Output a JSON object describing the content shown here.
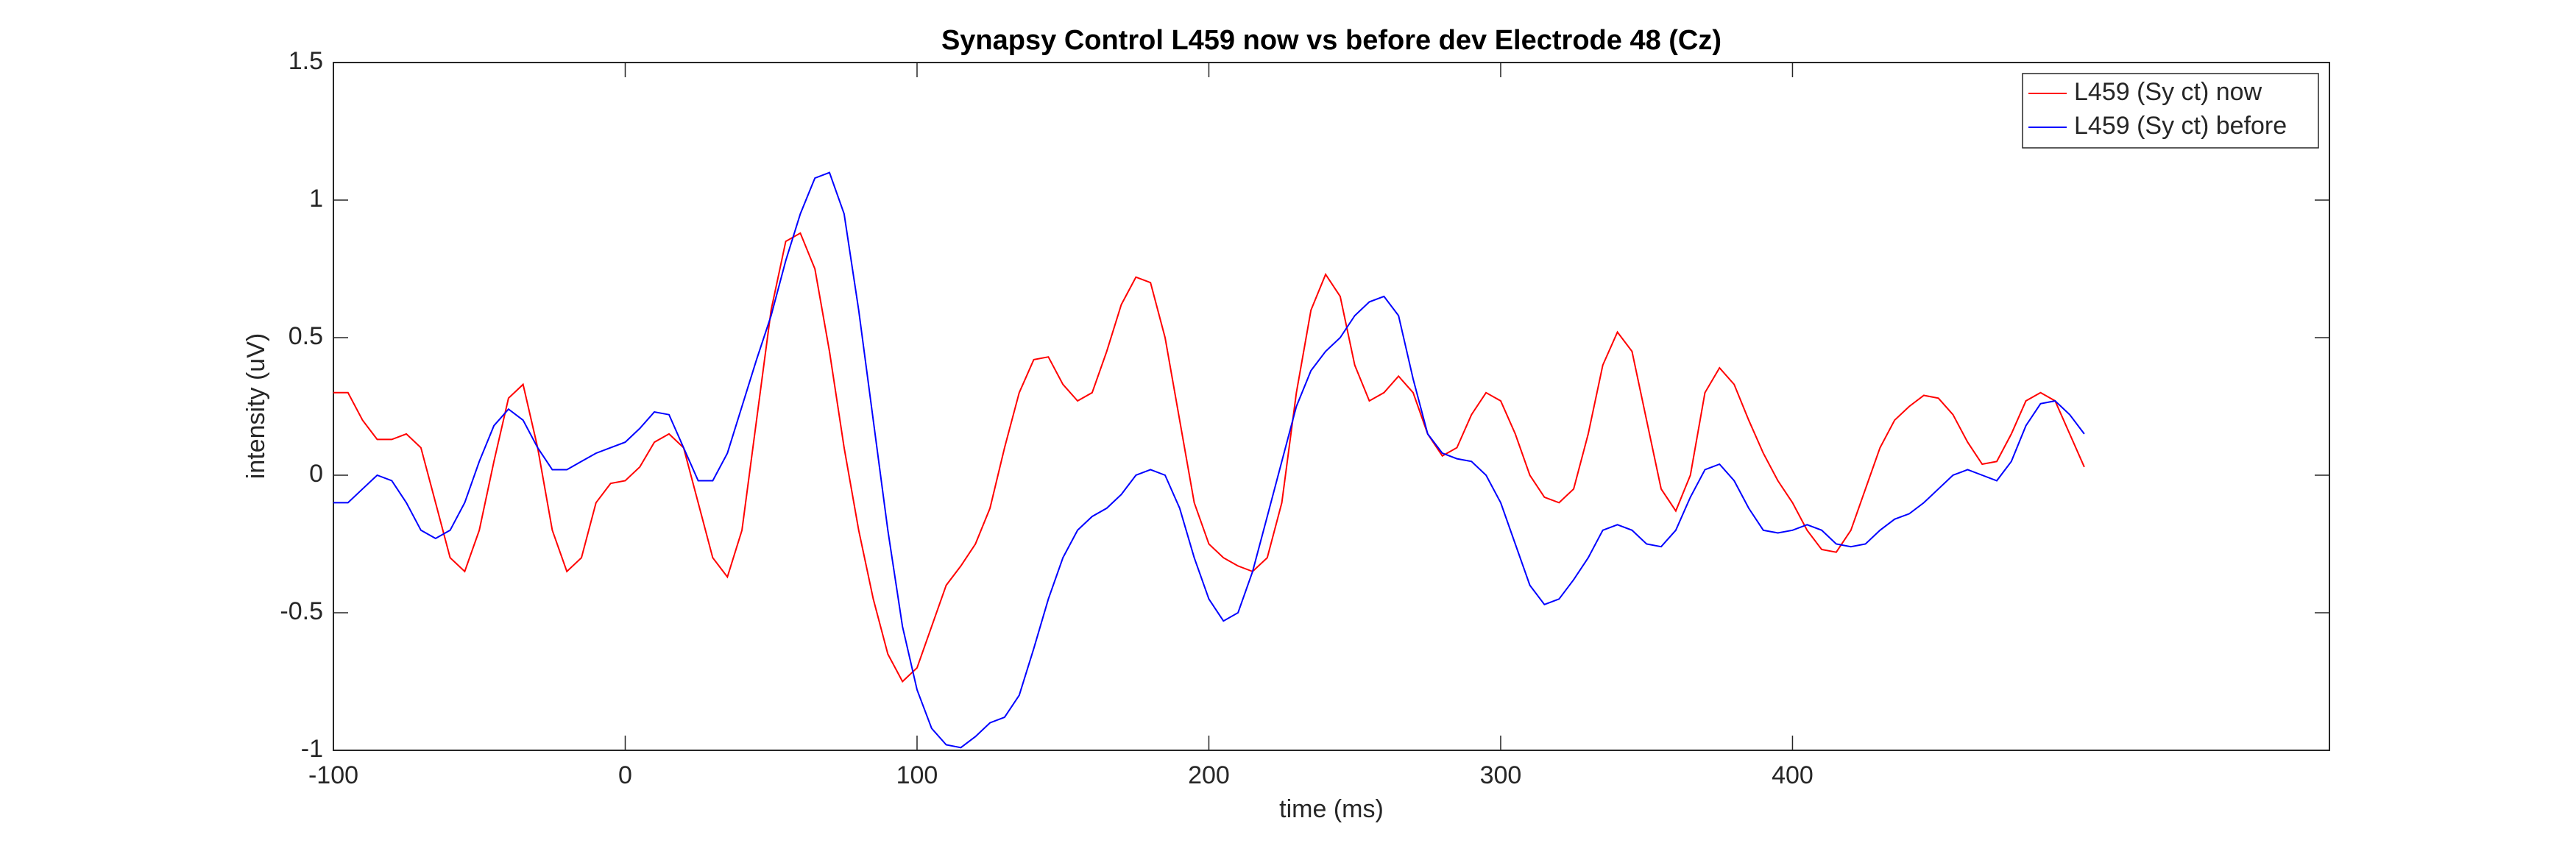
{
  "chart_data": {
    "type": "line",
    "title": "Synapsy Control L459 now vs before dev Electrode 48 (Cz)",
    "x_label": "time (ms)",
    "y_label": "intensity (uV)",
    "xlim": [
      -100,
      584
    ],
    "xticks": [
      -100,
      0,
      100,
      200,
      300,
      400
    ],
    "ylim": [
      -1,
      1.5
    ],
    "yticks": [
      -1,
      -0.5,
      0,
      0.5,
      1,
      1.5
    ],
    "legend": "upper right",
    "x": [
      -100,
      -95,
      -90,
      -85,
      -80,
      -75,
      -70,
      -65,
      -60,
      -55,
      -50,
      -45,
      -40,
      -35,
      -30,
      -25,
      -20,
      -15,
      -10,
      -5,
      0,
      5,
      10,
      15,
      20,
      25,
      30,
      35,
      40,
      45,
      50,
      55,
      60,
      65,
      70,
      75,
      80,
      85,
      90,
      95,
      100,
      105,
      110,
      115,
      120,
      125,
      130,
      135,
      140,
      145,
      150,
      155,
      160,
      165,
      170,
      175,
      180,
      185,
      190,
      195,
      200,
      205,
      210,
      215,
      220,
      225,
      230,
      235,
      240,
      245,
      250,
      255,
      260,
      265,
      270,
      275,
      280,
      285,
      290,
      295,
      300,
      305,
      310,
      315,
      320,
      325,
      330,
      335,
      340,
      345,
      350,
      355,
      360,
      365,
      370,
      375,
      380,
      385,
      390,
      395,
      400,
      405,
      410,
      415,
      420,
      425,
      430,
      435,
      440,
      445,
      450,
      455,
      460,
      465,
      470,
      475,
      480,
      485,
      490,
      495,
      500
    ],
    "series": [
      {
        "name": "L459 (Sy ct) now",
        "color": "#ff0000",
        "values": [
          0.3,
          0.3,
          0.2,
          0.13,
          0.13,
          0.15,
          0.1,
          -0.1,
          -0.3,
          -0.35,
          -0.2,
          0.05,
          0.28,
          0.33,
          0.1,
          -0.2,
          -0.35,
          -0.3,
          -0.1,
          -0.03,
          -0.02,
          0.03,
          0.12,
          0.15,
          0.1,
          -0.1,
          -0.3,
          -0.37,
          -0.2,
          0.2,
          0.6,
          0.85,
          0.88,
          0.75,
          0.45,
          0.1,
          -0.2,
          -0.45,
          -0.65,
          -0.75,
          -0.7,
          -0.55,
          -0.4,
          -0.33,
          -0.25,
          -0.12,
          0.1,
          0.3,
          0.42,
          0.43,
          0.33,
          0.27,
          0.3,
          0.45,
          0.62,
          0.72,
          0.7,
          0.5,
          0.2,
          -0.1,
          -0.25,
          -0.3,
          -0.33,
          -0.35,
          -0.3,
          -0.1,
          0.3,
          0.6,
          0.73,
          0.65,
          0.4,
          0.27,
          0.3,
          0.36,
          0.3,
          0.15,
          0.07,
          0.1,
          0.22,
          0.3,
          0.27,
          0.15,
          0.0,
          -0.08,
          -0.1,
          -0.05,
          0.15,
          0.4,
          0.52,
          0.45,
          0.2,
          -0.05,
          -0.13,
          0.0,
          0.3,
          0.39,
          0.33,
          0.2,
          0.08,
          -0.02,
          -0.1,
          -0.2,
          -0.27,
          -0.28,
          -0.2,
          -0.05,
          0.1,
          0.2,
          0.25,
          0.29,
          0.28,
          0.22,
          0.12,
          0.04,
          0.05,
          0.15,
          0.27,
          0.3,
          0.27,
          0.15,
          0.03
        ]
      },
      {
        "name": "L459 (Sy ct) before",
        "color": "#0000ff",
        "values": [
          -0.1,
          -0.1,
          -0.05,
          0.0,
          -0.02,
          -0.1,
          -0.2,
          -0.23,
          -0.2,
          -0.1,
          0.05,
          0.18,
          0.24,
          0.2,
          0.1,
          0.02,
          0.02,
          0.05,
          0.08,
          0.1,
          0.12,
          0.17,
          0.23,
          0.22,
          0.1,
          -0.02,
          -0.02,
          0.08,
          0.25,
          0.42,
          0.58,
          0.78,
          0.95,
          1.08,
          1.1,
          0.95,
          0.6,
          0.2,
          -0.2,
          -0.55,
          -0.78,
          -0.92,
          -0.98,
          -0.99,
          -0.95,
          -0.9,
          -0.88,
          -0.8,
          -0.63,
          -0.45,
          -0.3,
          -0.2,
          -0.15,
          -0.12,
          -0.07,
          0.0,
          0.02,
          0.0,
          -0.12,
          -0.3,
          -0.45,
          -0.53,
          -0.5,
          -0.35,
          -0.15,
          0.05,
          0.25,
          0.38,
          0.45,
          0.5,
          0.58,
          0.63,
          0.65,
          0.58,
          0.35,
          0.15,
          0.08,
          0.06,
          0.05,
          0.0,
          -0.1,
          -0.25,
          -0.4,
          -0.47,
          -0.45,
          -0.38,
          -0.3,
          -0.2,
          -0.18,
          -0.2,
          -0.25,
          -0.26,
          -0.2,
          -0.08,
          0.02,
          0.04,
          -0.02,
          -0.12,
          -0.2,
          -0.21,
          -0.2,
          -0.18,
          -0.2,
          -0.25,
          -0.26,
          -0.25,
          -0.2,
          -0.16,
          -0.14,
          -0.1,
          -0.05,
          0.0,
          0.02,
          0.0,
          -0.02,
          0.05,
          0.18,
          0.26,
          0.27,
          0.22,
          0.15
        ]
      }
    ]
  }
}
